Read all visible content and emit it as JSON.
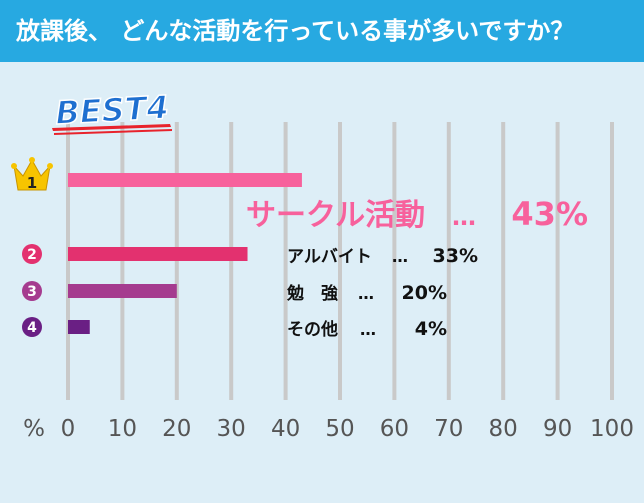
{
  "header": {
    "question": "放課後、 どんな活動を行っている事が多いですか？"
  },
  "badge": {
    "label": "BEST4"
  },
  "colors": {
    "header_bg": "#27a9e1",
    "page_bg": "#ddeef7",
    "grid": "#c9c9c9",
    "crown": "#f7c400"
  },
  "chart_data": {
    "type": "bar",
    "orientation": "horizontal",
    "categories": [
      "サークル活動",
      "アルバイト",
      "勉　強",
      "その他"
    ],
    "values": [
      43,
      33,
      20,
      4
    ],
    "ranks": [
      "1",
      "2",
      "3",
      "4"
    ],
    "value_labels": [
      "43%",
      "33%",
      "20%",
      "4%"
    ],
    "separator": "…",
    "bar_colors": [
      "#f7619c",
      "#e3316f",
      "#a53b8f",
      "#6a1f84"
    ],
    "xunit": "%",
    "xticks": [
      "0",
      "10",
      "20",
      "30",
      "40",
      "50",
      "60",
      "70",
      "80",
      "90",
      "100"
    ],
    "xlim": [
      0,
      100
    ],
    "grid": true
  }
}
